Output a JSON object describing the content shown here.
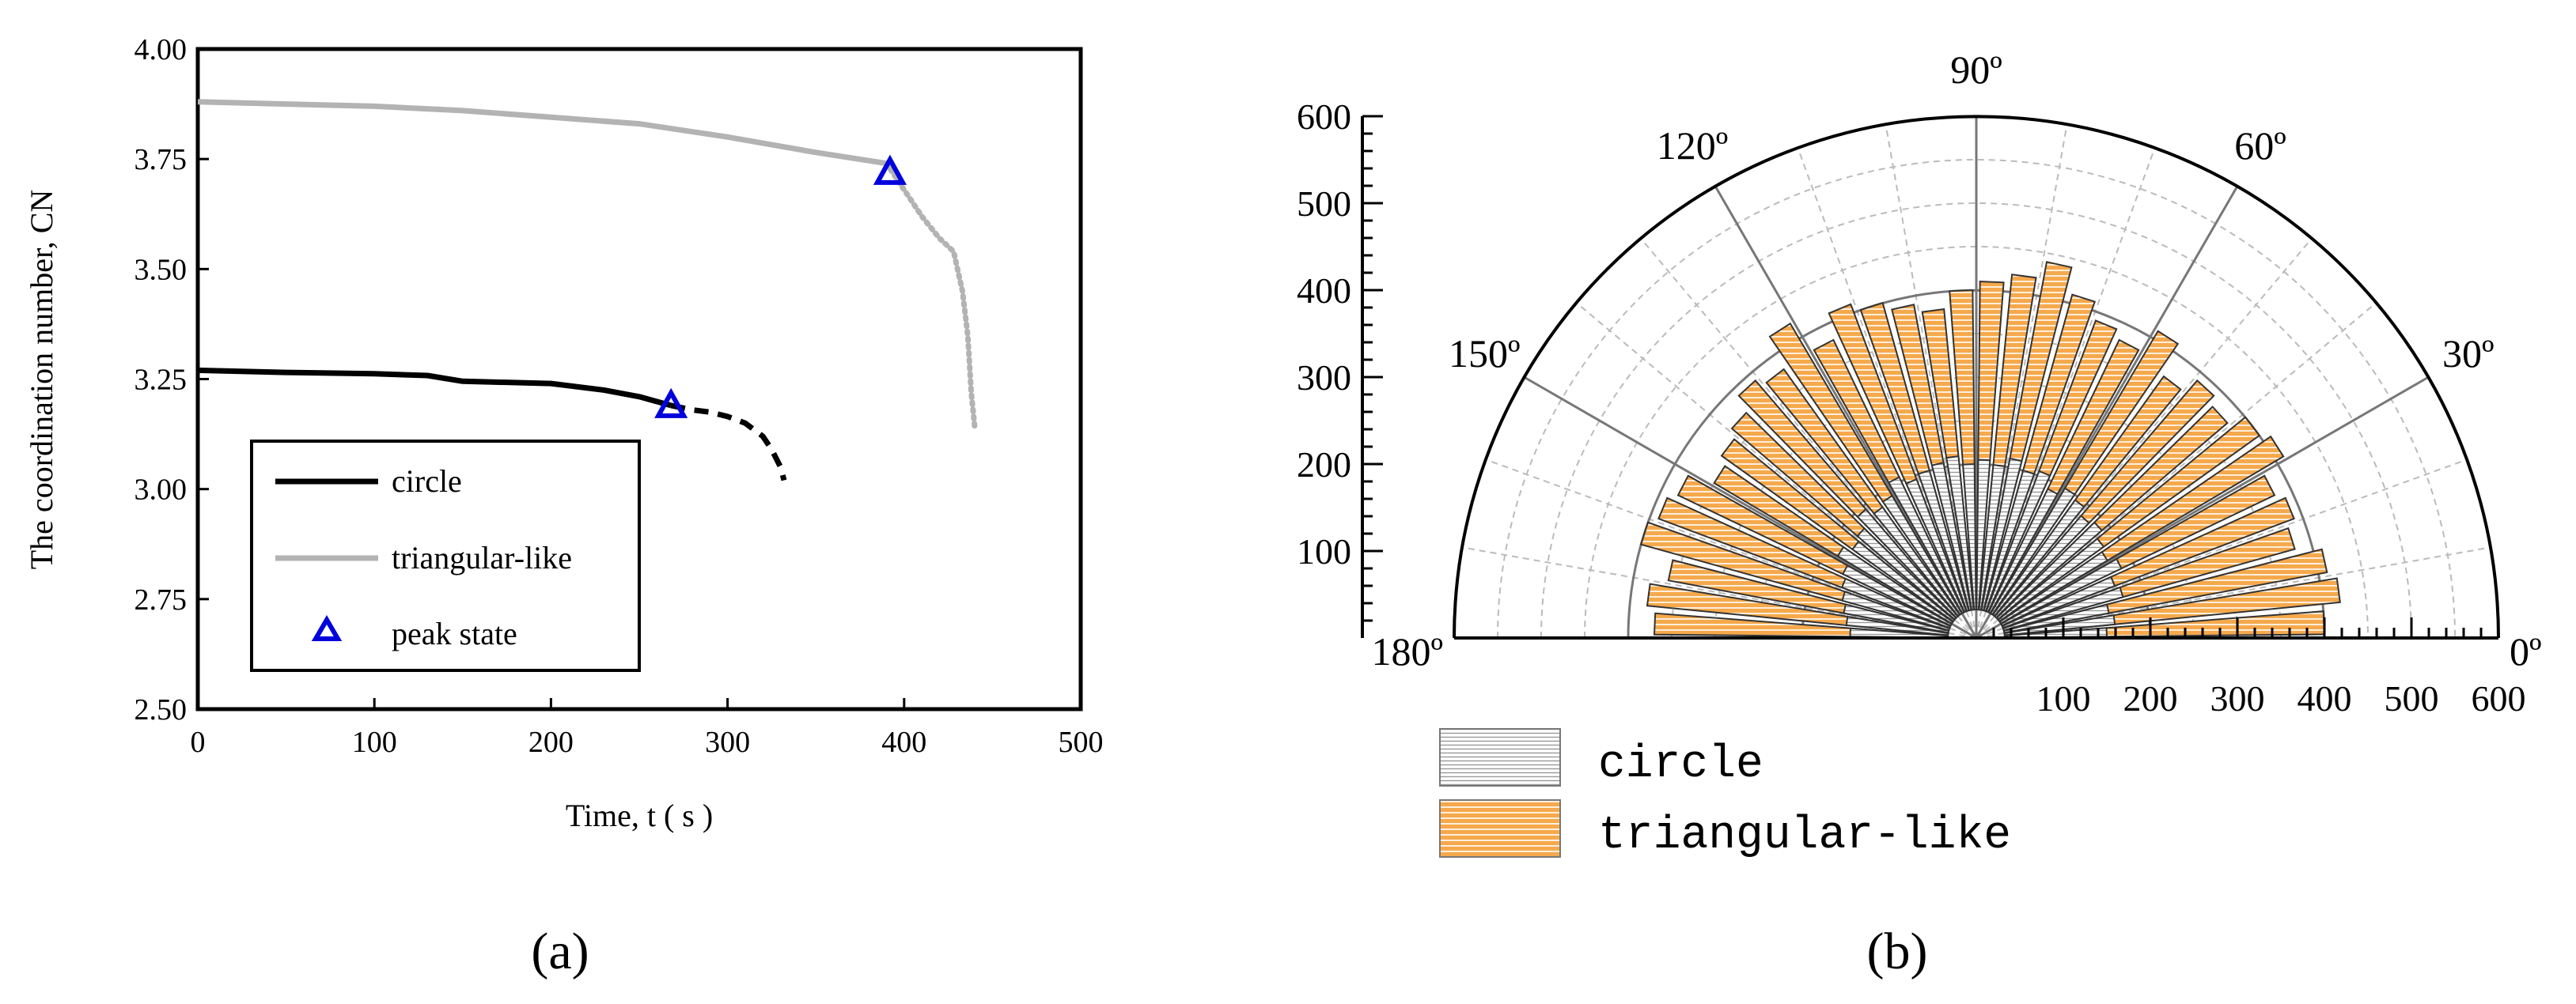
{
  "chart_data": [
    {
      "type": "line",
      "panel_label": "(a)",
      "xlabel": "Time, t ( s )",
      "ylabel": "The coordination number, CN",
      "xlim": [
        0,
        500
      ],
      "ylim": [
        2.5,
        4.0
      ],
      "x_ticks": [
        "0",
        "100",
        "200",
        "300",
        "400",
        "500"
      ],
      "y_ticks": [
        "2.50",
        "2.75",
        "3.00",
        "3.25",
        "3.50",
        "3.75",
        "4.00"
      ],
      "grid": false,
      "legend_position": "bottom-left",
      "colors": {
        "circle": "#000000",
        "triangular-like": "#b3b3b3",
        "peak_state": "#0000dd"
      },
      "series": [
        {
          "name": "circle",
          "x": [
            0,
            50,
            100,
            130,
            150,
            200,
            230,
            250,
            268
          ],
          "y": [
            3.27,
            3.265,
            3.262,
            3.258,
            3.245,
            3.24,
            3.225,
            3.21,
            3.19
          ],
          "post_peak_x": [
            268,
            280,
            290,
            300,
            310,
            320,
            325,
            330,
            332
          ],
          "post_peak_y": [
            3.19,
            3.18,
            3.175,
            3.165,
            3.15,
            3.12,
            3.09,
            3.05,
            3.02
          ]
        },
        {
          "name": "triangular-like",
          "x": [
            0,
            50,
            100,
            150,
            200,
            250,
            300,
            350,
            390
          ],
          "y": [
            3.88,
            3.875,
            3.87,
            3.86,
            3.845,
            3.83,
            3.8,
            3.765,
            3.74
          ],
          "post_peak_x": [
            390,
            400,
            410,
            420,
            428,
            433,
            436,
            438,
            440
          ],
          "post_peak_y": [
            3.74,
            3.68,
            3.62,
            3.57,
            3.54,
            3.45,
            3.35,
            3.22,
            3.14
          ]
        }
      ],
      "peak_state": {
        "name": "peak state",
        "points": [
          [
            268,
            3.19
          ],
          [
            392,
            3.72
          ]
        ]
      }
    },
    {
      "type": "polar-bar",
      "panel_label": "(b)",
      "theta_range": [
        0,
        180
      ],
      "theta_ticks": [
        "0º",
        "30º",
        "60º",
        "90º",
        "120º",
        "150º",
        "180º"
      ],
      "r_ticks": [
        "100",
        "200",
        "300",
        "400",
        "500",
        "600"
      ],
      "r_range": [
        0,
        600
      ],
      "grid": true,
      "legend_position": "bottom",
      "colors": {
        "circle": "#d9d9d9",
        "triangular-like": "#f5a94c"
      },
      "bin_width_deg": 5,
      "theta_centers_deg": [
        2.5,
        7.5,
        12.5,
        17.5,
        22.5,
        27.5,
        32.5,
        37.5,
        42.5,
        47.5,
        52.5,
        57.5,
        62.5,
        67.5,
        72.5,
        77.5,
        82.5,
        87.5,
        92.5,
        97.5,
        102.5,
        107.5,
        112.5,
        117.5,
        122.5,
        127.5,
        132.5,
        137.5,
        142.5,
        147.5,
        152.5,
        157.5,
        162.5,
        167.5,
        172.5,
        177.5
      ],
      "series": [
        {
          "name": "circle",
          "values": [
            150,
            160,
            155,
            175,
            170,
            185,
            175,
            180,
            190,
            185,
            195,
            200,
            190,
            205,
            200,
            210,
            200,
            205,
            200,
            210,
            205,
            200,
            195,
            205,
            190,
            185,
            195,
            180,
            175,
            185,
            170,
            165,
            160,
            155,
            150,
            145
          ]
        },
        {
          "name": "triangular-like",
          "values": [
            400,
            420,
            410,
            380,
            390,
            380,
            410,
            400,
            380,
            390,
            370,
            410,
            380,
            390,
            410,
            440,
            420,
            410,
            400,
            380,
            390,
            400,
            410,
            380,
            420,
            380,
            390,
            370,
            360,
            350,
            380,
            390,
            400,
            360,
            380,
            370
          ]
        }
      ]
    }
  ]
}
